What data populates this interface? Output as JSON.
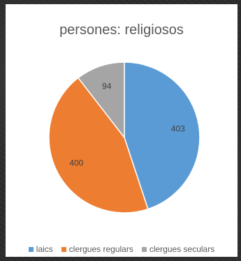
{
  "chart_data": {
    "type": "pie",
    "title": "persones: religiosos",
    "slices": [
      {
        "label": "laics",
        "value": 403,
        "color": "#5b9bd5"
      },
      {
        "label": "clergues regulars",
        "value": 400,
        "color": "#ed7d31"
      },
      {
        "label": "clergues seculars",
        "value": 94,
        "color": "#a5a5a5"
      }
    ],
    "start_angle_deg": 0,
    "direction": "clockwise",
    "legend_position": "bottom",
    "data_labels": true
  }
}
